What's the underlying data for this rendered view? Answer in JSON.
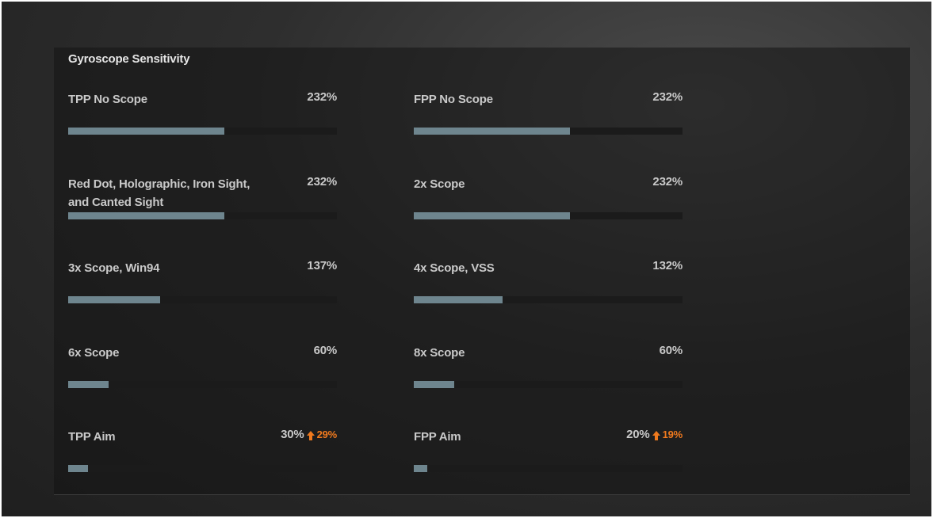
{
  "title": "Gyroscope Sensitivity",
  "range": [
    0,
    400
  ],
  "settings": [
    {
      "name": "TPP No Scope",
      "value": 232,
      "label": "232%"
    },
    {
      "name": "FPP No Scope",
      "value": 232,
      "label": "232%"
    },
    {
      "name": "Red Dot, Holographic, Iron Sight, and Canted Sight",
      "value": 232,
      "label": "232%"
    },
    {
      "name": "2x Scope",
      "value": 232,
      "label": "232%"
    },
    {
      "name": "3x Scope, Win94",
      "value": 137,
      "label": "137%"
    },
    {
      "name": "4x Scope, VSS",
      "value": 132,
      "label": "132%"
    },
    {
      "name": "6x Scope",
      "value": 60,
      "label": "60%"
    },
    {
      "name": "8x Scope",
      "value": 60,
      "label": "60%"
    },
    {
      "name": "TPP Aim",
      "value": 30,
      "label": "30%",
      "change_label": "29%"
    },
    {
      "name": "FPP Aim",
      "value": 20,
      "label": "20%",
      "change_label": "19%"
    }
  ]
}
